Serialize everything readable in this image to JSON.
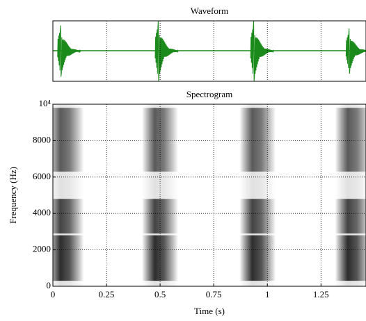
{
  "chart_data": [
    {
      "type": "waveform",
      "title": "Waveform",
      "color": "#1a8a1a",
      "x": [
        0.035,
        0.49,
        0.935,
        1.38
      ],
      "values": [
        0.85,
        1.0,
        1.0,
        0.75
      ],
      "xlim": [
        0,
        1.46
      ],
      "ylim": [
        -1,
        1
      ],
      "xticks": [
        0.25,
        0.5,
        0.75,
        1,
        1.25
      ],
      "grid": true
    },
    {
      "type": "spectrogram",
      "title": "Spectrogram",
      "xlabel": "Time (s)",
      "ylabel": "Frequency (Hz)",
      "x": [
        0.06,
        0.5,
        0.955,
        1.4
      ],
      "bands": [
        {
          "low": 0,
          "high": 10000,
          "intensity": 0.12
        },
        {
          "low": 300,
          "high": 2800,
          "intensity": 0.8
        },
        {
          "low": 2900,
          "high": 4800,
          "intensity": 0.7
        },
        {
          "low": 6300,
          "high": 9800,
          "intensity": 0.6
        }
      ],
      "xlim": [
        0,
        1.46
      ],
      "ylim": [
        0,
        10000
      ],
      "xticks": [
        0,
        0.25,
        0.5,
        0.75,
        1,
        1.25
      ],
      "yticks": [
        0,
        2000,
        4000,
        6000,
        8000,
        {
          "value": 10000,
          "label": "10⁴"
        }
      ],
      "grid": true
    }
  ]
}
